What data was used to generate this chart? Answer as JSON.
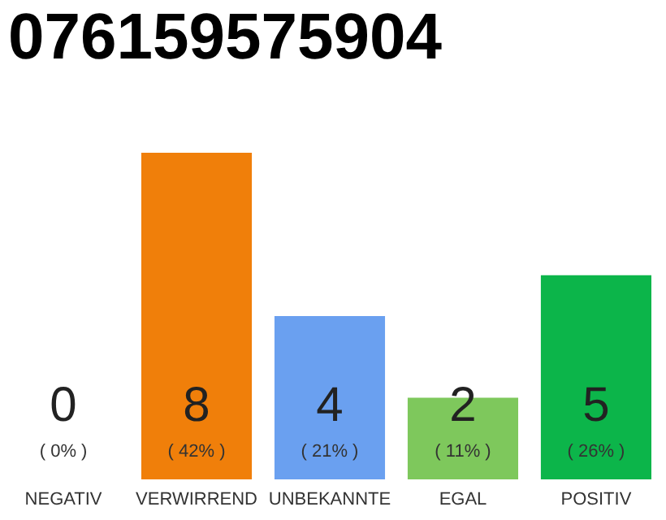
{
  "chart_data": {
    "type": "bar",
    "title": "076159575904",
    "categories": [
      "NEGATIV",
      "VERWIRREND",
      "UNBEKANNTE",
      "EGAL",
      "POSITIV"
    ],
    "values": [
      0,
      8,
      4,
      2,
      5
    ],
    "colors": [
      "#555555",
      "#f07f0a",
      "#6aa0f0",
      "#7ec85c",
      "#0cb54a"
    ],
    "tick_labels": "x",
    "data_labels": true,
    "annotations": [
      "( 0% )",
      "( 42% )",
      "( 21% )",
      "( 11% )",
      "( 26% )"
    ]
  }
}
